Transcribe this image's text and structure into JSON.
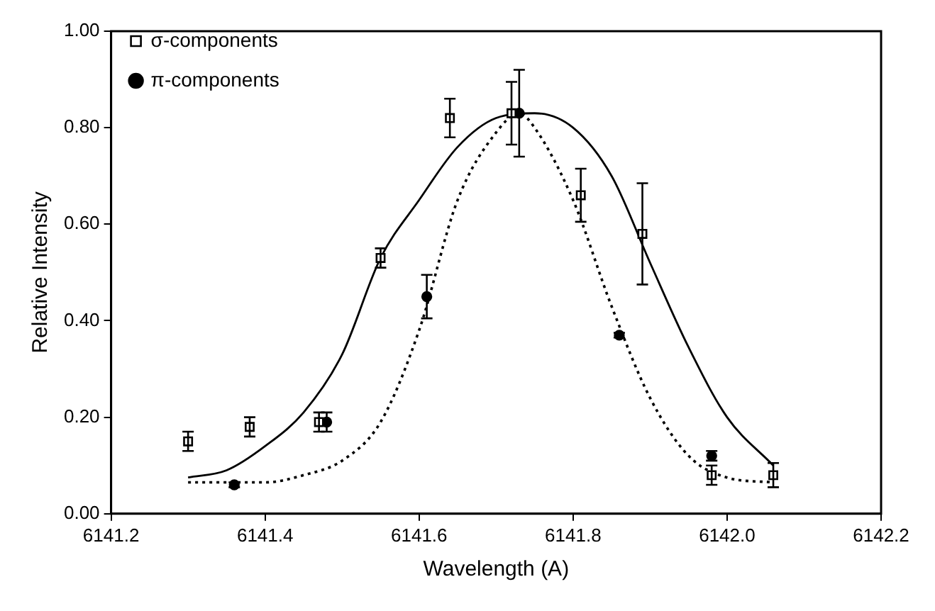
{
  "chart_data": {
    "type": "scatter",
    "xlabel": "Wavelength (A)",
    "ylabel": "Relative Intensity",
    "xlim": [
      6141.2,
      6142.2
    ],
    "ylim": [
      0,
      1
    ],
    "xticks": [
      {
        "value": 6141.2,
        "label": "6141.2"
      },
      {
        "value": 6141.4,
        "label": "6141.4"
      },
      {
        "value": 6141.6,
        "label": "6141.6"
      },
      {
        "value": 6141.8,
        "label": "6141.8"
      },
      {
        "value": 6142.0,
        "label": "6142.0"
      },
      {
        "value": 6142.2,
        "label": "6142.2"
      }
    ],
    "yticks": [
      {
        "value": 0,
        "label": "0.00"
      },
      {
        "value": 0.2,
        "label": "0.20"
      },
      {
        "value": 0.4,
        "label": "0.40"
      },
      {
        "value": 0.6,
        "label": "0.60"
      },
      {
        "value": 0.8,
        "label": "0.80"
      },
      {
        "value": 1,
        "label": "1.00"
      }
    ],
    "grid": false,
    "legend": "top left",
    "series": [
      {
        "name": "σ-components",
        "marker": "square",
        "color": "#000000",
        "x": [
          6141.3,
          6141.38,
          6141.47,
          6141.55,
          6141.64,
          6141.72,
          6141.81,
          6141.89,
          6141.98,
          6142.06
        ],
        "values": [
          0.15,
          0.18,
          0.19,
          0.53,
          0.82,
          0.83,
          0.66,
          0.58,
          0.08,
          0.08
        ],
        "errors": [
          0.02,
          0.02,
          0.02,
          0.02,
          0.04,
          0.065,
          0.055,
          0.105,
          0.02,
          0.025
        ]
      },
      {
        "name": "π-components",
        "marker": "circle",
        "color": "#000000",
        "x": [
          6141.36,
          6141.48,
          6141.61,
          6141.73,
          6141.86,
          6141.98
        ],
        "values": [
          0.06,
          0.19,
          0.45,
          0.83,
          0.37,
          0.12
        ],
        "errors": [
          0.005,
          0.02,
          0.045,
          0.09,
          0.005,
          0.01
        ]
      },
      {
        "type": "line",
        "marker": "none",
        "line_style": "solid",
        "color": "#000000",
        "x": [
          6141.3,
          6141.35,
          6141.4,
          6141.45,
          6141.5,
          6141.55,
          6141.6,
          6141.65,
          6141.7,
          6141.75,
          6141.8,
          6141.85,
          6141.9,
          6141.95,
          6142.0,
          6142.06
        ],
        "values": [
          0.075,
          0.09,
          0.14,
          0.21,
          0.33,
          0.53,
          0.65,
          0.76,
          0.82,
          0.83,
          0.8,
          0.7,
          0.52,
          0.345,
          0.2,
          0.1
        ]
      },
      {
        "type": "line",
        "marker": "none",
        "line_style": "dotted",
        "color": "#000000",
        "x": [
          6141.3,
          6141.4,
          6141.45,
          6141.5,
          6141.55,
          6141.6,
          6141.65,
          6141.7,
          6141.73,
          6141.75,
          6141.8,
          6141.85,
          6141.9,
          6141.95,
          6142.0,
          6142.06
        ],
        "values": [
          0.065,
          0.065,
          0.08,
          0.11,
          0.19,
          0.38,
          0.65,
          0.79,
          0.83,
          0.8,
          0.65,
          0.43,
          0.24,
          0.12,
          0.075,
          0.065
        ]
      }
    ]
  }
}
